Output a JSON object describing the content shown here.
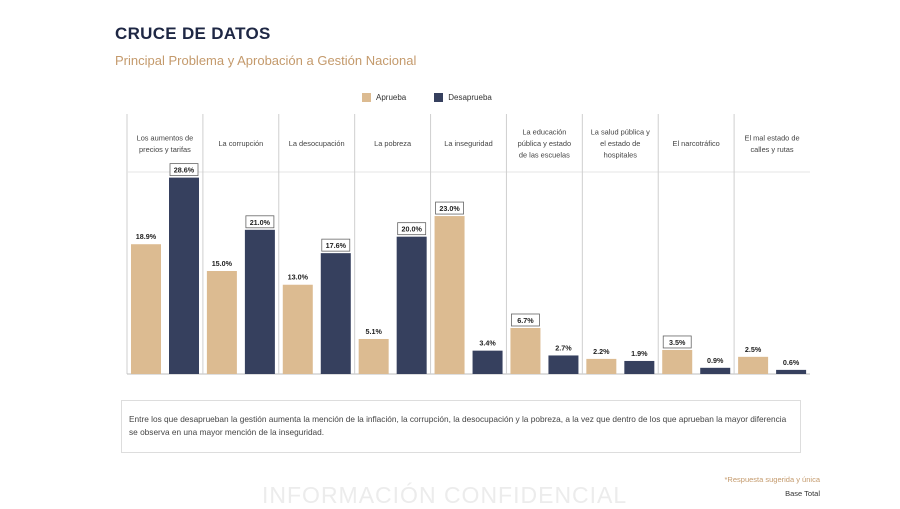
{
  "header": {
    "title": "CRUCE DE DATOS",
    "subtitle": "Principal Problema y Aprobación a Gestión Nacional"
  },
  "colors": {
    "aprueba": "#dcbb91",
    "desaprueba": "#36405e",
    "title": "#1e2744",
    "accent": "#c49a6c"
  },
  "chart_data": {
    "type": "bar",
    "categories": [
      [
        "Los aumentos de",
        "precios y tarifas"
      ],
      [
        "La corrupción"
      ],
      [
        "La desocupación"
      ],
      [
        "La pobreza"
      ],
      [
        "La inseguridad"
      ],
      [
        "La educación",
        "pública y estado",
        "de las escuelas"
      ],
      [
        "La salud pública y",
        "el estado de",
        "hospitales"
      ],
      [
        "El narcotráfico"
      ],
      [
        "El mal estado de",
        "calles y rutas"
      ]
    ],
    "series": [
      {
        "name": "Aprueba",
        "values": [
          18.9,
          15.0,
          13.0,
          5.1,
          23.0,
          6.7,
          2.2,
          3.5,
          2.5
        ]
      },
      {
        "name": "Desaprueba",
        "values": [
          28.6,
          21.0,
          17.6,
          20.0,
          3.4,
          2.7,
          1.9,
          0.9,
          0.6
        ]
      }
    ],
    "value_labels": [
      [
        "18.9%",
        "15.0%",
        "13.0%",
        "5.1%",
        "23.0%",
        "6.7%",
        "2.2%",
        "3.5%",
        "2.5%"
      ],
      [
        "28.6%",
        "21.0%",
        "17.6%",
        "20.0%",
        "3.4%",
        "2.7%",
        "1.9%",
        "0.9%",
        "0.6%"
      ]
    ],
    "boxed": [
      [
        false,
        false,
        false,
        false,
        true,
        true,
        false,
        true,
        false
      ],
      [
        true,
        true,
        true,
        true,
        false,
        false,
        false,
        false,
        false
      ]
    ],
    "ylim": [
      0,
      30
    ],
    "legend": "top-center"
  },
  "note": "Entre los que desaprueban la gestión aumenta la mención de la inflación, la corrupción, la desocupación y la pobreza, a la vez que dentro de los que aprueban la mayor diferencia se observa en una mayor mención de la inseguridad.",
  "footnote": "*Respuesta sugerida y única",
  "base_total": "Base Total",
  "watermark": "INFORMACIÓN CONFIDENCIAL"
}
